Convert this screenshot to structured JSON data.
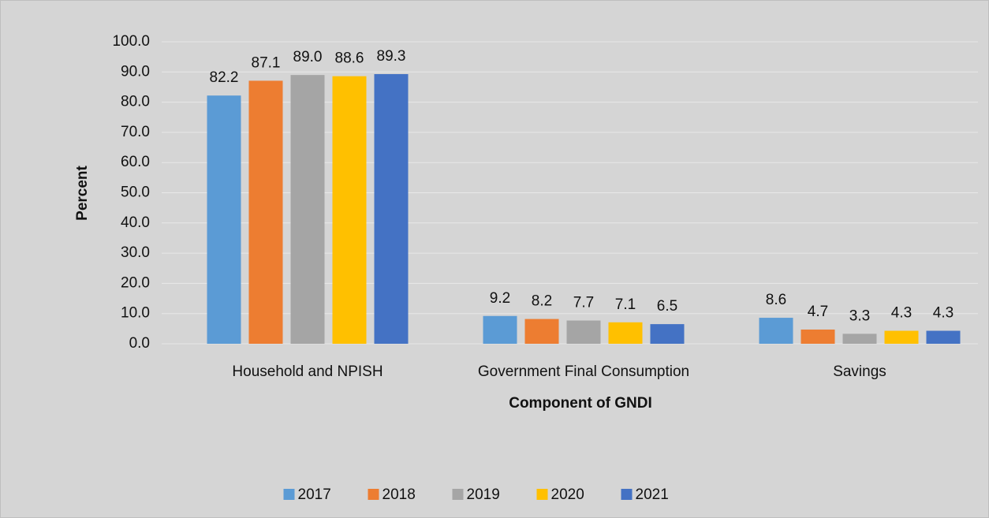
{
  "chart_data": {
    "type": "bar",
    "x_label": "Component of GNDI",
    "y_label": "Percent",
    "categories": [
      "Household and NPISH",
      "Government Final Consumption",
      "Savings"
    ],
    "series": [
      {
        "name": "2017",
        "color": "#5b9bd5",
        "values": [
          82.2,
          9.2,
          8.6
        ],
        "value_labels": [
          "82.2",
          "9.2",
          "8.6"
        ]
      },
      {
        "name": "2018",
        "color": "#ed7d31",
        "values": [
          87.1,
          8.2,
          4.7
        ],
        "value_labels": [
          "87.1",
          "8.2",
          "4.7"
        ]
      },
      {
        "name": "2019",
        "color": "#a5a5a5",
        "values": [
          89.0,
          7.7,
          3.3
        ],
        "value_labels": [
          "89.0",
          "7.7",
          "3.3"
        ]
      },
      {
        "name": "2020",
        "color": "#ffc000",
        "values": [
          88.6,
          7.1,
          4.3
        ],
        "value_labels": [
          "88.6",
          "7.1",
          "4.3"
        ]
      },
      {
        "name": "2021",
        "color": "#4472c4",
        "values": [
          89.3,
          6.5,
          4.3
        ],
        "value_labels": [
          "89.3",
          "6.5",
          "4.3"
        ]
      }
    ],
    "ylim": [
      0,
      100
    ],
    "yticks": [
      {
        "value": 0,
        "label": "0.0"
      },
      {
        "value": 10,
        "label": "10.0"
      },
      {
        "value": 20,
        "label": "20.0"
      },
      {
        "value": 30,
        "label": "30.0"
      },
      {
        "value": 40,
        "label": "40.0"
      },
      {
        "value": 50,
        "label": "50.0"
      },
      {
        "value": 60,
        "label": "60.0"
      },
      {
        "value": 70,
        "label": "70.0"
      },
      {
        "value": 80,
        "label": "80.0"
      },
      {
        "value": 90,
        "label": "90.0"
      },
      {
        "value": 100,
        "label": "100.0"
      }
    ],
    "grid": true,
    "legend": "bottom"
  }
}
